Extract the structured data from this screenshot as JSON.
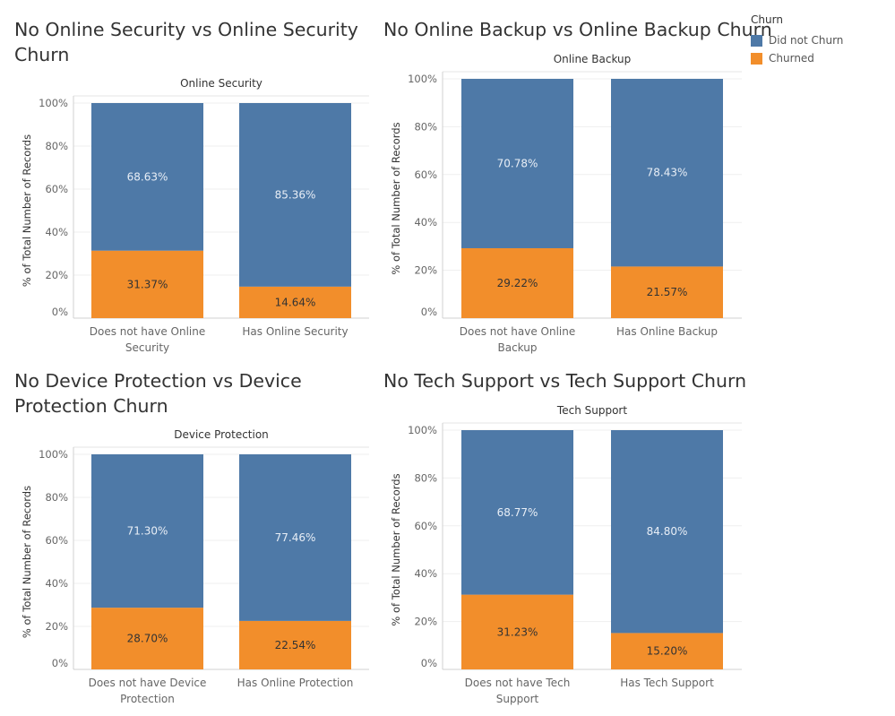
{
  "legend": {
    "title": "Churn",
    "items": [
      {
        "label": "Did not Churn",
        "color": "#4e79a7"
      },
      {
        "label": "Churned",
        "color": "#f28e2b"
      }
    ]
  },
  "chart_data": [
    {
      "type": "bar",
      "stacked": true,
      "title": "No Online Security vs Online Security Churn",
      "header": "Online Security",
      "ylabel": "% of Total Number of Records",
      "ylim": [
        0,
        100
      ],
      "yticks": [
        "0%",
        "20%",
        "40%",
        "60%",
        "80%",
        "100%"
      ],
      "categories": [
        "Does not have Online Security",
        "Has Online Security"
      ],
      "series": [
        {
          "name": "Did not Churn",
          "values": [
            68.63,
            85.36
          ],
          "labels": [
            "68.63%",
            "85.36%"
          ]
        },
        {
          "name": "Churned",
          "values": [
            31.37,
            14.64
          ],
          "labels": [
            "31.37%",
            "14.64%"
          ]
        }
      ]
    },
    {
      "type": "bar",
      "stacked": true,
      "title": "No Online Backup vs Online Backup Churn",
      "header": "Online Backup",
      "ylabel": "% of Total Number of Records",
      "ylim": [
        0,
        100
      ],
      "yticks": [
        "0%",
        "20%",
        "40%",
        "60%",
        "80%",
        "100%"
      ],
      "categories": [
        "Does not have Online Backup",
        "Has Online Backup"
      ],
      "series": [
        {
          "name": "Did not Churn",
          "values": [
            70.78,
            78.43
          ],
          "labels": [
            "70.78%",
            "78.43%"
          ]
        },
        {
          "name": "Churned",
          "values": [
            29.22,
            21.57
          ],
          "labels": [
            "29.22%",
            "21.57%"
          ]
        }
      ]
    },
    {
      "type": "bar",
      "stacked": true,
      "title": "No Device Protection vs Device Protection Churn",
      "header": "Device Protection",
      "ylabel": "% of Total Number of Records",
      "ylim": [
        0,
        100
      ],
      "yticks": [
        "0%",
        "20%",
        "40%",
        "60%",
        "80%",
        "100%"
      ],
      "categories": [
        "Does not have Device Protection",
        "Has Online Protection"
      ],
      "series": [
        {
          "name": "Did not Churn",
          "values": [
            71.3,
            77.46
          ],
          "labels": [
            "71.30%",
            "77.46%"
          ]
        },
        {
          "name": "Churned",
          "values": [
            28.7,
            22.54
          ],
          "labels": [
            "28.70%",
            "22.54%"
          ]
        }
      ]
    },
    {
      "type": "bar",
      "stacked": true,
      "title": "No Tech Support vs Tech Support Churn",
      "header": "Tech Support",
      "ylabel": "% of Total Number of Records",
      "ylim": [
        0,
        100
      ],
      "yticks": [
        "0%",
        "20%",
        "40%",
        "60%",
        "80%",
        "100%"
      ],
      "categories": [
        "Does not have Tech Support",
        "Has Tech Support"
      ],
      "series": [
        {
          "name": "Did not Churn",
          "values": [
            68.77,
            84.8
          ],
          "labels": [
            "68.77%",
            "84.80%"
          ]
        },
        {
          "name": "Churned",
          "values": [
            31.23,
            15.2
          ],
          "labels": [
            "31.23%",
            "15.20%"
          ]
        }
      ]
    }
  ]
}
